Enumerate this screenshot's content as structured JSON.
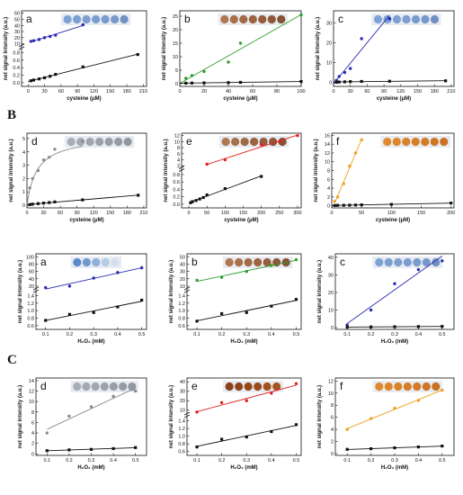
{
  "section_labels": [
    "B",
    "C"
  ],
  "colors": {
    "navy": "#2b2bb0",
    "green": "#2e9e2e",
    "gray": "#8a8a8a",
    "red": "#e0201e",
    "orange": "#f0a020",
    "black": "#111111"
  },
  "chart_data": [
    {
      "type": "scatter",
      "panel": "a",
      "title": "",
      "xlabel": "cysteine (μM)",
      "ylabel": "net signal intensity (a.u.)",
      "xticks": [
        "0",
        "30",
        "60",
        "90",
        "120",
        "150",
        "180",
        "210"
      ],
      "yticks": [
        "0.0",
        "0.2",
        "0.4",
        "0.6",
        "0.8",
        "10",
        "20",
        "30",
        "40",
        "50",
        "60"
      ],
      "y_axis_break": true,
      "spot_strip": "blue",
      "series": [
        {
          "color": "navy",
          "x": [
            5,
            10,
            20,
            30,
            40,
            50,
            100
          ],
          "y": [
            14,
            15,
            17,
            20,
            22,
            24,
            41
          ],
          "fit_x": [
            5,
            100
          ]
        },
        {
          "color": "black",
          "x": [
            5,
            10,
            20,
            30,
            40,
            50,
            100,
            200
          ],
          "y": [
            0.05,
            0.07,
            0.1,
            0.13,
            0.17,
            0.22,
            0.42,
            0.75
          ],
          "fit_x": [
            0,
            200
          ]
        }
      ]
    },
    {
      "type": "scatter",
      "panel": "b",
      "title": "",
      "xlabel": "cysteine (μM)",
      "ylabel": "net signal intensity (a.u.)",
      "xticks": [
        "0",
        "20",
        "40",
        "60",
        "80",
        "100"
      ],
      "yticks": [
        "0",
        "5",
        "10",
        "15",
        "20",
        "25"
      ],
      "xlim": [
        0,
        100
      ],
      "ylim": [
        -1,
        27
      ],
      "spot_strip": "brown",
      "series": [
        {
          "color": "green",
          "x": [
            5,
            10,
            20,
            40,
            50,
            100
          ],
          "y": [
            2,
            3,
            4.5,
            8,
            15,
            25.5
          ],
          "fit_x": [
            0,
            100
          ]
        },
        {
          "color": "black",
          "x": [
            5,
            10,
            20,
            40,
            50,
            100
          ],
          "y": [
            0.2,
            0.25,
            0.3,
            0.4,
            0.5,
            0.8
          ],
          "fit_x": [
            0,
            100
          ]
        }
      ]
    },
    {
      "type": "scatter",
      "panel": "c",
      "title": "",
      "xlabel": "cysteine (μM)",
      "ylabel": "net signal intensity (a.u.)",
      "xticks": [
        "0",
        "30",
        "60",
        "90",
        "120",
        "150",
        "180",
        "210"
      ],
      "yticks": [
        "0",
        "10",
        "20",
        "30"
      ],
      "xlim": [
        0,
        215
      ],
      "ylim": [
        -2,
        36
      ],
      "spot_strip": "blue",
      "series": [
        {
          "color": "navy",
          "x": [
            5,
            10,
            20,
            30,
            50,
            100
          ],
          "y": [
            1,
            3,
            5,
            7,
            22,
            32
          ],
          "fit_x": [
            0,
            100
          ]
        },
        {
          "color": "black",
          "x": [
            5,
            10,
            20,
            30,
            50,
            100,
            200
          ],
          "y": [
            0.1,
            0.2,
            0.3,
            0.4,
            0.5,
            0.6,
            0.8
          ],
          "fit_x": [
            0,
            200
          ]
        }
      ]
    },
    {
      "type": "scatter",
      "panel": "d",
      "title": "",
      "xlabel": "cysteine (μM)",
      "ylabel": "net signal intensity (a.u.)",
      "xticks": [
        "0",
        "30",
        "60",
        "90",
        "120",
        "150",
        "180",
        "210"
      ],
      "yticks": [
        "0",
        "1",
        "2",
        "3",
        "4",
        "5"
      ],
      "xlim": [
        0,
        215
      ],
      "ylim": [
        -0.2,
        5.4
      ],
      "spot_strip": "gray",
      "series": [
        {
          "color": "gray",
          "x": [
            5,
            10,
            20,
            30,
            40,
            50,
            100
          ],
          "y": [
            1.3,
            2.0,
            2.6,
            3.4,
            3.6,
            4.2,
            4.8
          ],
          "fit": "saturation",
          "fit_x": [
            0,
            100
          ]
        },
        {
          "color": "black",
          "x": [
            5,
            10,
            20,
            30,
            40,
            50,
            100,
            200
          ],
          "y": [
            0.05,
            0.08,
            0.12,
            0.16,
            0.2,
            0.25,
            0.4,
            0.75
          ],
          "fit_x": [
            0,
            200
          ]
        }
      ]
    },
    {
      "type": "scatter",
      "panel": "e",
      "title": "",
      "xlabel": "cysteine (μM)",
      "ylabel": "net signal intensity (a.u.)",
      "xticks": [
        "0",
        "50",
        "100",
        "150",
        "200",
        "250",
        "300"
      ],
      "yticks": [
        "0.0",
        "0.2",
        "0.4",
        "0.6",
        "0.8",
        "2",
        "4",
        "6",
        "8",
        "10",
        "12"
      ],
      "y_axis_break": true,
      "spot_strip": "brown",
      "series": [
        {
          "color": "red",
          "x": [
            50,
            100,
            200,
            250,
            300
          ],
          "y": [
            2.5,
            4,
            9,
            10,
            12
          ],
          "fit_x": [
            50,
            300
          ]
        },
        {
          "color": "black",
          "x": [
            5,
            10,
            20,
            30,
            40,
            50,
            100,
            200
          ],
          "y": [
            0.04,
            0.07,
            0.1,
            0.14,
            0.18,
            0.25,
            0.42,
            0.75
          ],
          "fit_x": [
            0,
            200
          ]
        }
      ]
    },
    {
      "type": "scatter",
      "panel": "f",
      "title": "",
      "xlabel": "cysteine (μM)",
      "ylabel": "net signal intensity (a.u.)",
      "xticks": [
        "0",
        "50",
        "100",
        "150",
        "200"
      ],
      "yticks": [
        "0",
        "2",
        "4",
        "6",
        "8",
        "10",
        "12",
        "14",
        "16"
      ],
      "xlim": [
        0,
        205
      ],
      "ylim": [
        -0.5,
        16.5
      ],
      "spot_strip": "orange",
      "strip_position": "right",
      "series": [
        {
          "color": "orange",
          "x": [
            5,
            10,
            20,
            30,
            40,
            50
          ],
          "y": [
            1,
            2,
            5,
            9,
            12,
            15
          ],
          "fit_x": [
            5,
            50
          ]
        },
        {
          "color": "black",
          "x": [
            5,
            10,
            20,
            30,
            40,
            50,
            100,
            200
          ],
          "y": [
            0.05,
            0.08,
            0.1,
            0.12,
            0.15,
            0.2,
            0.3,
            0.6
          ],
          "fit_x": [
            0,
            200
          ]
        }
      ]
    },
    {
      "type": "scatter",
      "panel": "a",
      "title": "",
      "xlabel": "H₂O₂ (mM)",
      "ylabel": "net signal intensity (a.u.)",
      "xticks": [
        "0.1",
        "0.2",
        "0.3",
        "0.4",
        "0.5"
      ],
      "yticks": [
        "0.6",
        "0.8",
        "1.0",
        "1.2",
        "1.4",
        "20",
        "40",
        "60",
        "80",
        "100"
      ],
      "y_axis_break": true,
      "spot_strip": "fading-blue",
      "series": [
        {
          "color": "navy",
          "x": [
            0.1,
            0.2,
            0.3,
            0.4,
            0.5
          ],
          "y": [
            16,
            20,
            42,
            57,
            70
          ],
          "fit_x": [
            0.1,
            0.5
          ]
        },
        {
          "color": "black",
          "x": [
            0.1,
            0.2,
            0.3,
            0.4,
            0.5
          ],
          "y": [
            0.74,
            0.9,
            0.95,
            1.1,
            1.28
          ],
          "fit_x": [
            0.1,
            0.5
          ]
        }
      ]
    },
    {
      "type": "scatter",
      "panel": "b",
      "title": "",
      "xlabel": "H₂O₂ (mM)",
      "ylabel": "net signal intensity (a.u.)",
      "xticks": [
        "0.1",
        "0.2",
        "0.3",
        "0.4",
        "0.5"
      ],
      "yticks": [
        "0.6",
        "0.8",
        "1.0",
        "1.2",
        "1.4",
        "10",
        "20",
        "30",
        "40",
        "50"
      ],
      "y_axis_break": true,
      "spot_strip": "brown",
      "series": [
        {
          "color": "green",
          "x": [
            0.1,
            0.2,
            0.3,
            0.4,
            0.5
          ],
          "y": [
            18,
            22,
            30,
            38,
            46
          ],
          "fit_x": [
            0.1,
            0.5
          ]
        },
        {
          "color": "black",
          "x": [
            0.1,
            0.2,
            0.3,
            0.4,
            0.5
          ],
          "y": [
            0.72,
            0.92,
            0.95,
            1.12,
            1.3
          ],
          "fit_x": [
            0.1,
            0.5
          ]
        }
      ]
    },
    {
      "type": "scatter",
      "panel": "c",
      "title": "",
      "xlabel": "H₂O₂ (mM)",
      "ylabel": "net signal intensity (a.u.)",
      "xticks": [
        "0.1",
        "0.2",
        "0.3",
        "0.4",
        "0.5"
      ],
      "yticks": [
        "0",
        "10",
        "20",
        "30",
        "40"
      ],
      "xlim": [
        0.05,
        0.55
      ],
      "ylim": [
        -1,
        42
      ],
      "spot_strip": "blue",
      "series": [
        {
          "color": "navy",
          "x": [
            0.1,
            0.2,
            0.3,
            0.4,
            0.5
          ],
          "y": [
            1.5,
            10,
            25,
            33,
            38
          ],
          "fit_x": [
            0.1,
            0.5
          ]
        },
        {
          "color": "black",
          "x": [
            0.1,
            0.2,
            0.3,
            0.4,
            0.5
          ],
          "y": [
            0.3,
            0.4,
            0.5,
            0.6,
            0.7
          ],
          "fit_x": [
            0.1,
            0.5
          ]
        }
      ]
    },
    {
      "type": "scatter",
      "panel": "d",
      "title": "",
      "xlabel": "H₂O₂ (mM)",
      "ylabel": "net signal intensity (a.u.)",
      "xticks": [
        "0.1",
        "0.2",
        "0.3",
        "0.4",
        "0.5"
      ],
      "yticks": [
        "0",
        "2",
        "4",
        "6",
        "8",
        "10",
        "12",
        "14"
      ],
      "xlim": [
        0.05,
        0.55
      ],
      "ylim": [
        -0.3,
        14.5
      ],
      "spot_strip": "gray",
      "series": [
        {
          "color": "gray",
          "x": [
            0.1,
            0.2,
            0.3,
            0.4,
            0.5
          ],
          "y": [
            4,
            7.2,
            9,
            11,
            12
          ],
          "fit_x": [
            0.1,
            0.5
          ]
        },
        {
          "color": "black",
          "x": [
            0.1,
            0.2,
            0.3,
            0.4,
            0.5
          ],
          "y": [
            0.6,
            0.75,
            0.85,
            1.0,
            1.2
          ],
          "fit_x": [
            0.1,
            0.5
          ]
        }
      ]
    },
    {
      "type": "scatter",
      "panel": "e",
      "title": "",
      "xlabel": "H₂O₂ (mM)",
      "ylabel": "net signal intensity (a.u.)",
      "xticks": [
        "0.1",
        "0.2",
        "0.3",
        "0.4",
        "0.5"
      ],
      "yticks": [
        "0.6",
        "0.8",
        "1.0",
        "1.2",
        "1.4",
        "10",
        "20",
        "30",
        "40"
      ],
      "y_axis_break": true,
      "spot_strip": "dark-brown",
      "series": [
        {
          "color": "red",
          "x": [
            0.1,
            0.2,
            0.3,
            0.4,
            0.5
          ],
          "y": [
            8,
            18,
            20,
            28,
            38
          ],
          "fit_x": [
            0.1,
            0.5
          ]
        },
        {
          "color": "black",
          "x": [
            0.1,
            0.2,
            0.3,
            0.4,
            0.5
          ],
          "y": [
            0.72,
            0.92,
            0.98,
            1.12,
            1.3
          ],
          "fit_x": [
            0.1,
            0.5
          ]
        }
      ]
    },
    {
      "type": "scatter",
      "panel": "f",
      "title": "",
      "xlabel": "H₂O₂ (mM)",
      "ylabel": "net signal intensity (a.u.)",
      "xticks": [
        "0.1",
        "0.2",
        "0.3",
        "0.4",
        "0.5"
      ],
      "yticks": [
        "0",
        "2",
        "4",
        "6",
        "8",
        "10",
        "12"
      ],
      "xlim": [
        0.05,
        0.55
      ],
      "ylim": [
        -0.3,
        12.5
      ],
      "spot_strip": "orange",
      "series": [
        {
          "color": "orange",
          "x": [
            0.1,
            0.2,
            0.3,
            0.4,
            0.5
          ],
          "y": [
            4,
            5.8,
            7.5,
            8.8,
            10.5
          ],
          "fit_x": [
            0.1,
            0.5
          ]
        },
        {
          "color": "black",
          "x": [
            0.1,
            0.2,
            0.3,
            0.4,
            0.5
          ],
          "y": [
            0.7,
            0.8,
            0.95,
            1.1,
            1.25
          ],
          "fit_x": [
            0.1,
            0.5
          ]
        }
      ]
    }
  ]
}
